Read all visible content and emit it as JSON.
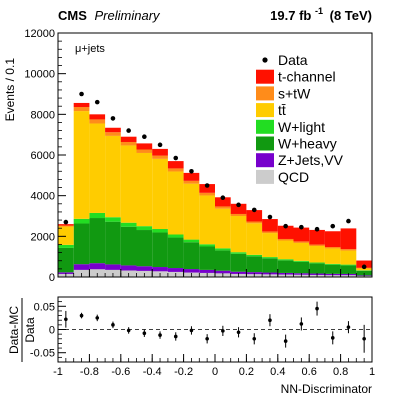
{
  "header": {
    "experiment": "CMS",
    "status": "Preliminary",
    "luminosity": "19.7 fb",
    "lumi_exponent": "-1",
    "energy": "(8 TeV)"
  },
  "channel_label": "μ+jets",
  "chart_data": [
    {
      "type": "bar",
      "stacked": true,
      "xlabel": "NN-Discriminator",
      "ylabel": "Events / 0.1",
      "xlim": [
        -1,
        1
      ],
      "ylim": [
        0,
        12000
      ],
      "xticks": [
        "-1",
        "-0.8",
        "-0.6",
        "-0.4",
        "-0.2",
        "0",
        "0.2",
        "0.4",
        "0.6",
        "0.8",
        "1"
      ],
      "yticks": [
        "0",
        "2000",
        "4000",
        "6000",
        "8000",
        "10000",
        "12000"
      ],
      "bin_edges": [
        -1.0,
        -0.9,
        -0.8,
        -0.7,
        -0.6,
        -0.5,
        -0.4,
        -0.3,
        -0.2,
        -0.1,
        0.0,
        0.1,
        0.2,
        0.3,
        0.4,
        0.5,
        0.6,
        0.7,
        0.8,
        0.9,
        1.0
      ],
      "legend_position": "top-right",
      "series": [
        {
          "name": "QCD",
          "color": "#cccccc",
          "values": [
            150,
            350,
            380,
            350,
            320,
            300,
            280,
            250,
            220,
            200,
            180,
            150,
            140,
            130,
            120,
            110,
            100,
            90,
            90,
            50
          ]
        },
        {
          "name": "Z+Jets,VV",
          "color": "#7700cc",
          "values": [
            80,
            280,
            300,
            270,
            250,
            230,
            210,
            190,
            170,
            150,
            130,
            110,
            100,
            90,
            80,
            75,
            70,
            65,
            60,
            30
          ]
        },
        {
          "name": "W+heavy",
          "color": "#119911",
          "values": [
            1200,
            2000,
            2220,
            2100,
            1900,
            1780,
            1700,
            1500,
            1320,
            1150,
            1000,
            880,
            780,
            700,
            620,
            560,
            500,
            450,
            420,
            230
          ]
        },
        {
          "name": "W+light",
          "color": "#22dd22",
          "values": [
            150,
            230,
            250,
            220,
            200,
            190,
            170,
            150,
            130,
            110,
            100,
            80,
            70,
            60,
            55,
            50,
            45,
            40,
            40,
            20
          ]
        },
        {
          "name": "tt̄",
          "color": "#ffcc00",
          "values": [
            900,
            5300,
            4400,
            4000,
            3800,
            3600,
            3450,
            3100,
            2750,
            2400,
            1950,
            1780,
            1550,
            1180,
            920,
            880,
            810,
            760,
            690,
            90
          ]
        },
        {
          "name": "s+tW",
          "color": "#ff8c1a",
          "values": [
            50,
            200,
            200,
            180,
            170,
            170,
            160,
            150,
            140,
            130,
            110,
            100,
            90,
            80,
            75,
            75,
            70,
            70,
            70,
            30
          ]
        },
        {
          "name": "t-channel",
          "color": "#ff1100",
          "values": [
            70,
            200,
            250,
            220,
            260,
            300,
            330,
            360,
            390,
            430,
            450,
            500,
            560,
            610,
            650,
            680,
            720,
            775,
            1020,
            360
          ]
        }
      ],
      "data": {
        "name": "Data",
        "x": [
          -0.95,
          -0.85,
          -0.75,
          -0.65,
          -0.55,
          -0.45,
          -0.35,
          -0.25,
          -0.15,
          -0.05,
          0.05,
          0.15,
          0.25,
          0.35,
          0.45,
          0.55,
          0.65,
          0.75,
          0.85,
          0.95
        ],
        "y": [
          2700,
          9000,
          8600,
          7800,
          7200,
          6900,
          6500,
          5850,
          5200,
          4500,
          3900,
          3550,
          3300,
          2950,
          2500,
          2450,
          2350,
          2500,
          2750,
          500
        ]
      }
    },
    {
      "type": "scatter",
      "ylabel": "Data-MC / Data",
      "ylabel_numerator": "Data-MC",
      "ylabel_denominator": "Data",
      "xlabel": "NN-Discriminator",
      "xlim": [
        -1,
        1
      ],
      "ylim": [
        -0.07,
        0.07
      ],
      "yticks": [
        "-0.05",
        "0",
        "0.05"
      ],
      "reference_line": 0,
      "x": [
        -0.95,
        -0.85,
        -0.75,
        -0.65,
        -0.55,
        -0.45,
        -0.35,
        -0.25,
        -0.15,
        -0.05,
        0.05,
        0.15,
        0.25,
        0.35,
        0.45,
        0.55,
        0.65,
        0.75,
        0.85,
        0.95
      ],
      "y": [
        0.022,
        0.03,
        0.025,
        0.01,
        -0.002,
        -0.008,
        -0.012,
        -0.015,
        -0.002,
        -0.02,
        -0.003,
        -0.006,
        -0.02,
        0.02,
        -0.025,
        0.012,
        0.045,
        -0.018,
        0.005,
        -0.02
      ],
      "yerr": [
        0.018,
        0.006,
        0.007,
        0.007,
        0.007,
        0.008,
        0.008,
        0.009,
        0.009,
        0.01,
        0.011,
        0.011,
        0.012,
        0.013,
        0.014,
        0.014,
        0.015,
        0.014,
        0.013,
        0.03
      ]
    }
  ]
}
